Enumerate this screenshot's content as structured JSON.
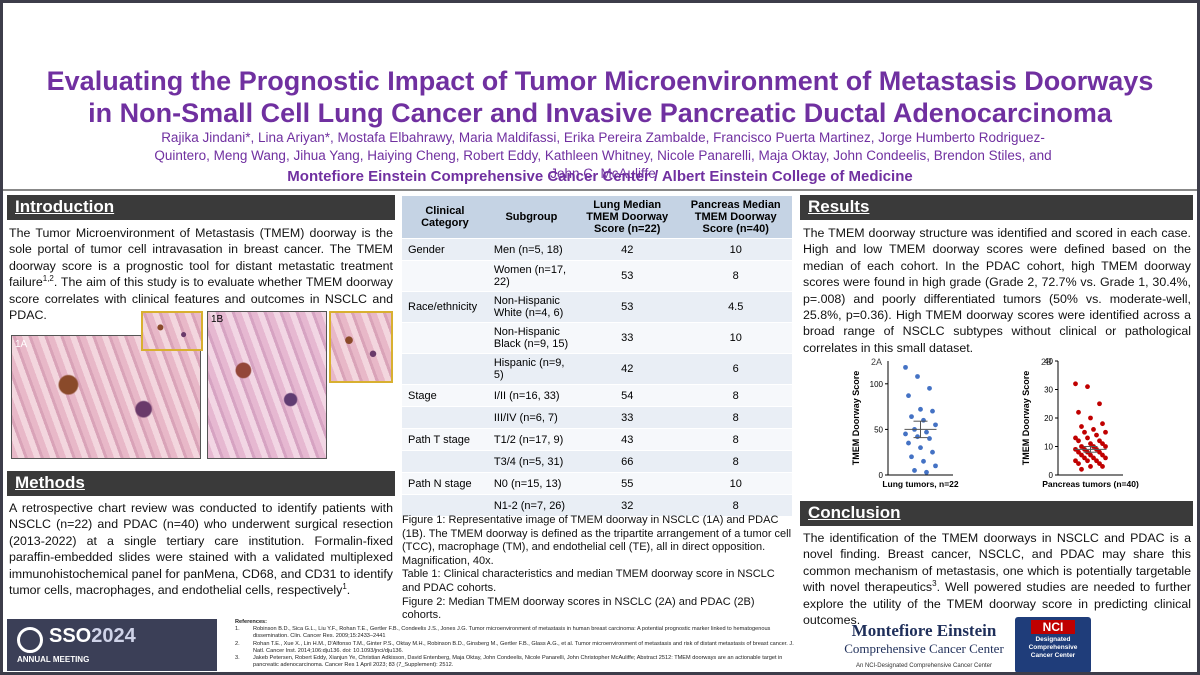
{
  "header": {
    "title_line1": "Evaluating the Prognostic Impact of Tumor Microenvironment of Metastasis Doorways",
    "title_line2": "in Non-Small Cell Lung Cancer and Invasive Pancreatic Ductal Adenocarcinoma",
    "authors": "Rajika Jindani*, Lina Ariyan*, Mostafa Elbahrawy, Maria Maldifassi, Erika Pereira Zambalde, Francisco Puerta Martinez, Jorge Humberto Rodriguez-Quintero, Meng Wang, Jihua Yang, Haiying Cheng, Robert Eddy, Kathleen Whitney, Nicole Panarelli, Maja Oktay, John Condeelis, Brendon Stiles, and John C. McAuliffe",
    "affiliation": "Montefiore Einstein Comprehensive Cancer Center / Albert Einstein College of Medicine"
  },
  "introduction": {
    "heading": "Introduction",
    "text_before": "The Tumor Microenvironment of Metastasis (TMEM) doorway is the sole portal of tumor cell intravasation in breast cancer.  The TMEM doorway score is a prognostic tool for distant metastatic treatment failure",
    "sup": "1,2",
    "text_after": ". The aim of this study is to evaluate whether TMEM doorway score correlates with clinical features and outcomes in NSCLC and PDAC.",
    "image_labels": [
      "1A",
      "1B"
    ]
  },
  "methods": {
    "heading": "Methods",
    "text_before": "A retrospective chart review was conducted to identify patients with NSCLC (n=22) and PDAC (n=40) who underwent surgical resection (2013-2022) at a single tertiary care institution. Formalin-fixed paraffin-embedded slides were stained with a validated multiplexed immunohistochemical panel for panMena, CD68, and CD31 to identify tumor cells, macrophages, and endothelial cells, respectively",
    "sup": "1",
    "text_after": "."
  },
  "table": {
    "columns": [
      "Clinical Category",
      "Subgroup",
      "Lung Median TMEM Doorway Score (n=22)",
      "Pancreas Median TMEM Doorway Score (n=40)"
    ],
    "rows": [
      [
        "Gender",
        "Men (n=5, 18)",
        42,
        10
      ],
      [
        null,
        "Women (n=17, 22)",
        53,
        8
      ],
      [
        "Race/ethnicity",
        "Non-Hispanic White (n=4, 6)",
        53,
        4.5
      ],
      [
        null,
        "Non-Hispanic Black (n=9, 15)",
        33,
        10
      ],
      [
        null,
        "Hispanic (n=9, 5)",
        42,
        6
      ],
      [
        "Stage",
        "I/II (n=16, 33)",
        54,
        8
      ],
      [
        null,
        "III/IV (n=6, 7)",
        33,
        8
      ],
      [
        "Path T stage",
        "T1/2 (n=17, 9)",
        43,
        8
      ],
      [
        null,
        "T3/4 (n=5, 31)",
        66,
        8
      ],
      [
        "Path N stage",
        "N0 (n=15, 13)",
        55,
        10
      ],
      [
        null,
        "N1-2 (n=7, 26)",
        32,
        8
      ]
    ]
  },
  "captions": [
    "Figure 1: Representative image of TMEM doorway in NSCLC (1A) and PDAC (1B). The TMEM doorway is defined as the tripartite arrangement of a tumor cell (TCC), macrophage (TM), and endothelial cell (TE), all in direct opposition. Magnification, 40x.",
    "Table 1: Clinical characteristics and median TMEM doorway score in NSCLC and PDAC cohorts.",
    "Figure 2: Median TMEM doorway scores in NSCLC (2A) and PDAC (2B) cohorts."
  ],
  "results": {
    "heading": "Results",
    "text": "The TMEM doorway structure was identified and scored in each case. High and low TMEM doorway scores were defined based on the median of each cohort. In the PDAC cohort, high TMEM doorway scores were found in high grade (Grade 2, 72.7% vs. Grade 1, 30.4%, p=.008) and poorly differentiated tumors (50% vs. moderate-well, 25.8%, p=0.36). High TMEM doorway scores were identified across a broad range of NSCLC subtypes without clinical or pathological correlates in this small dataset."
  },
  "figure2": {
    "charts": [
      {
        "type": "scatter",
        "panel": "2A",
        "y_label": "TMEM Doorway Score",
        "x_label": "Lung tumors, n=22",
        "color": "#4472c4",
        "ylim": [
          0,
          125
        ],
        "yticks": [
          0,
          50,
          100
        ],
        "values": [
          118,
          108,
          95,
          87,
          72,
          70,
          64,
          60,
          55,
          50,
          47,
          45,
          42,
          40,
          35,
          30,
          25,
          20,
          15,
          10,
          5,
          3
        ],
        "mean": 50,
        "sem": 9
      },
      {
        "type": "scatter",
        "panel": "2B",
        "y_label": "TMEM Doorway Score",
        "x_label": "Pancreas tumors (n=40)",
        "color": "#c00000",
        "ylim": [
          0,
          40
        ],
        "yticks": [
          0,
          10,
          20,
          30,
          40
        ],
        "values": [
          32,
          31,
          25,
          22,
          20,
          18,
          17,
          16,
          15,
          15,
          14,
          13,
          13,
          12,
          12,
          11,
          11,
          10,
          10,
          10,
          9,
          9,
          9,
          8,
          8,
          8,
          7,
          7,
          7,
          6,
          6,
          6,
          5,
          5,
          5,
          4,
          4,
          3,
          3,
          2
        ],
        "mean": 9,
        "sem": 1
      }
    ]
  },
  "conclusion": {
    "heading": "Conclusion",
    "text_before": "The identification of the TMEM doorways in NSCLC and PDAC is a novel finding. Breast cancer, NSCLC, and PDAC may share this common mechanism of metastasis, one which is potentially targetable with novel therapeutics",
    "sup": "3",
    "text_after": ".  Well powered studies are needed to further explore the utility of the TMEM doorway score in predicting clinical outcomes."
  },
  "references": {
    "heading": "References:",
    "items": [
      {
        "num": "1.",
        "text": "Robinson B.D., Sica G.L., Liu Y.F., Rohan T.E., Gertler F.B., Condeelis J.S., Jones J.G. Tumor microenvironment of metastasis in human breast carcinoma: A potential prognostic marker linked to hematogenous dissemination. Clin. Cancer Res. 2009;15:2433–2441"
      },
      {
        "num": "2.",
        "text": "Rohan T.E., Xue X., Lin H.M., D'Alfonso T.M., Ginter P.S., Oktay M.H., Robinson B.D., Ginsberg M., Gertler F.B., Glass A.G., et al. Tumor microenvironment of metastasis and risk of distant metastasis of breast cancer. J. Natl. Cancer Inst. 2014;106:dju136. doi: 10.1093/jnci/dju136."
      },
      {
        "num": "3.",
        "text": "Jakeb Petersen, Robert Eddy, Xianjun Ye, Christian Adkisson, David Entenberg, Maja Oktay, John Condeelis, Nicole Panarelli, John Christopher McAuliffe; Abstract 2512: TMEM doorways are an actionable target in pancreatic adenocarcinoma. Cancer Res 1 April 2023; 83 (7_Supplement): 2512."
      }
    ]
  },
  "logos": {
    "sso": "SSO",
    "sso_year": "2024",
    "sso_sub": "ANNUAL MEETING",
    "montefiore": "Montefiore Einstein",
    "montefiore_sub": "Comprehensive Cancer Center",
    "montefiore_note": "An NCI-Designated Comprehensive Cancer Center",
    "nci": "NCI",
    "nci_lines": [
      "Designated",
      "Comprehensive",
      "Cancer Center"
    ]
  }
}
